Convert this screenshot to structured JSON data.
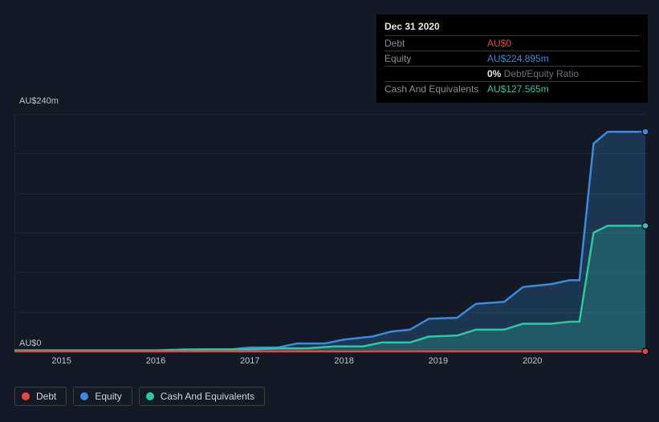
{
  "tooltip": {
    "date": "Dec 31 2020",
    "rows": [
      {
        "label": "Debt",
        "value": "AU$0",
        "cls": "debt"
      },
      {
        "label": "Equity",
        "value": "AU$224.895m",
        "cls": "equity"
      },
      {
        "label": "",
        "ratio_pct": "0%",
        "ratio_txt": " Debt/Equity Ratio",
        "cls": "ratio"
      },
      {
        "label": "Cash And Equivalents",
        "value": "AU$127.565m",
        "cls": "cash"
      }
    ]
  },
  "chart": {
    "type": "area",
    "y_top_label": "AU$240m",
    "y_bottom_label": "AU$0",
    "y_range": [
      0,
      240
    ],
    "gridlines_y": [
      0,
      40,
      80,
      120,
      160,
      200,
      240
    ],
    "x_years": [
      "2015",
      "2016",
      "2017",
      "2018",
      "2019",
      "2020"
    ],
    "x_range": [
      0,
      6.7
    ],
    "colors": {
      "debt": "#e64545",
      "equity": "#3a8bdb",
      "cash": "#2fc7a0",
      "grid": "#212732",
      "bg": "#131a25",
      "axis_text": "#bfc3c9"
    },
    "line_width": 2.5,
    "fill_opacity": 0.25,
    "series": {
      "debt": {
        "label": "Debt",
        "points": [
          [
            0,
            0
          ],
          [
            6.7,
            0
          ]
        ]
      },
      "equity": {
        "label": "Equity",
        "points": [
          [
            0.0,
            1
          ],
          [
            1.5,
            1
          ],
          [
            1.8,
            2
          ],
          [
            2.3,
            2
          ],
          [
            2.5,
            4
          ],
          [
            2.8,
            4
          ],
          [
            3.0,
            8
          ],
          [
            3.3,
            8
          ],
          [
            3.5,
            12
          ],
          [
            3.8,
            15
          ],
          [
            4.0,
            20
          ],
          [
            4.2,
            22
          ],
          [
            4.4,
            33
          ],
          [
            4.7,
            34
          ],
          [
            4.9,
            48
          ],
          [
            5.2,
            50
          ],
          [
            5.4,
            65
          ],
          [
            5.7,
            68
          ],
          [
            5.9,
            72
          ],
          [
            6.0,
            72
          ],
          [
            6.15,
            210
          ],
          [
            6.3,
            222
          ],
          [
            6.7,
            222
          ]
        ]
      },
      "cash": {
        "label": "Cash And Equivalents",
        "points": [
          [
            0.0,
            1
          ],
          [
            1.6,
            1
          ],
          [
            2.0,
            2
          ],
          [
            2.5,
            2
          ],
          [
            2.8,
            3
          ],
          [
            3.1,
            3
          ],
          [
            3.4,
            5
          ],
          [
            3.7,
            5
          ],
          [
            3.9,
            9
          ],
          [
            4.2,
            9
          ],
          [
            4.4,
            15
          ],
          [
            4.7,
            16
          ],
          [
            4.9,
            22
          ],
          [
            5.2,
            22
          ],
          [
            5.4,
            28
          ],
          [
            5.7,
            28
          ],
          [
            5.9,
            30
          ],
          [
            6.0,
            30
          ],
          [
            6.15,
            120
          ],
          [
            6.3,
            127
          ],
          [
            6.7,
            127
          ]
        ]
      }
    },
    "marker_x": 6.7
  },
  "legend": [
    {
      "key": "debt",
      "label": "Debt"
    },
    {
      "key": "equity",
      "label": "Equity"
    },
    {
      "key": "cash",
      "label": "Cash And Equivalents"
    }
  ]
}
